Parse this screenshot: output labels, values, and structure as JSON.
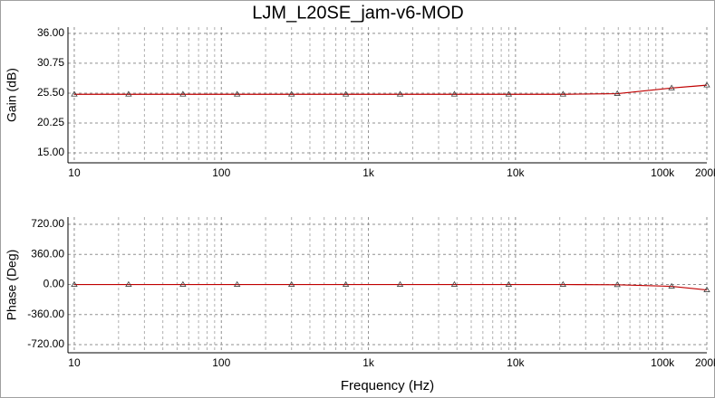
{
  "chart_data": [
    {
      "type": "line",
      "title": "LJM_L20SE_jam-v6-MOD",
      "ylabel": "Gain (dB)",
      "log_x": true,
      "grid": true,
      "minor_grid": true,
      "xlim": [
        9.06,
        200000
      ],
      "xticks": [
        10,
        100,
        {
          "value": 1000,
          "label": "1k"
        },
        {
          "value": 10000,
          "label": "10k"
        },
        {
          "value": 100000,
          "label": "100k"
        },
        {
          "value": 200000,
          "label": "200k"
        }
      ],
      "ylim": [
        13.25,
        37.1
      ],
      "yticks": [
        {
          "value": 36,
          "label": "36.00"
        },
        {
          "value": 30.75,
          "label": "30.75"
        },
        {
          "value": 25.5,
          "label": "25.50"
        },
        {
          "value": 20.25,
          "label": "20.25"
        },
        {
          "value": 15,
          "label": "15.00"
        }
      ],
      "x": [
        10,
        23.4,
        54.8,
        128,
        300,
        702,
        1642,
        3843,
        8993,
        21040,
        49230,
        115200,
        200000
      ],
      "series": [
        {
          "name": "Gain",
          "color": "#c00000",
          "values": [
            25.3,
            25.3,
            25.3,
            25.3,
            25.3,
            25.3,
            25.3,
            25.3,
            25.3,
            25.3,
            25.4,
            26.4,
            26.9
          ]
        }
      ]
    },
    {
      "type": "line",
      "ylabel": "Phase (Deg)",
      "xlabel": "Frequency (Hz)",
      "log_x": true,
      "grid": true,
      "minor_grid": true,
      "xlim": [
        9.06,
        200000
      ],
      "xticks": [
        10,
        100,
        {
          "value": 1000,
          "label": "1k"
        },
        {
          "value": 10000,
          "label": "10k"
        },
        {
          "value": 100000,
          "label": "100k"
        },
        {
          "value": 200000,
          "label": "200k"
        }
      ],
      "ylim": [
        -817,
        807
      ],
      "yticks": [
        {
          "value": 720,
          "label": "720.00"
        },
        {
          "value": 360,
          "label": "360.00"
        },
        {
          "value": 0,
          "label": "0.00"
        },
        {
          "value": -360,
          "label": "-360.00"
        },
        {
          "value": -720,
          "label": "-720.00"
        }
      ],
      "x": [
        10,
        23.4,
        54.8,
        128,
        300,
        702,
        1642,
        3843,
        8993,
        21040,
        49230,
        115200,
        200000
      ],
      "series": [
        {
          "name": "Phase",
          "color": "#c00000",
          "values": [
            0,
            0,
            0,
            0,
            0,
            0,
            0,
            0,
            0,
            0,
            -3,
            -22,
            -65
          ]
        }
      ]
    }
  ]
}
